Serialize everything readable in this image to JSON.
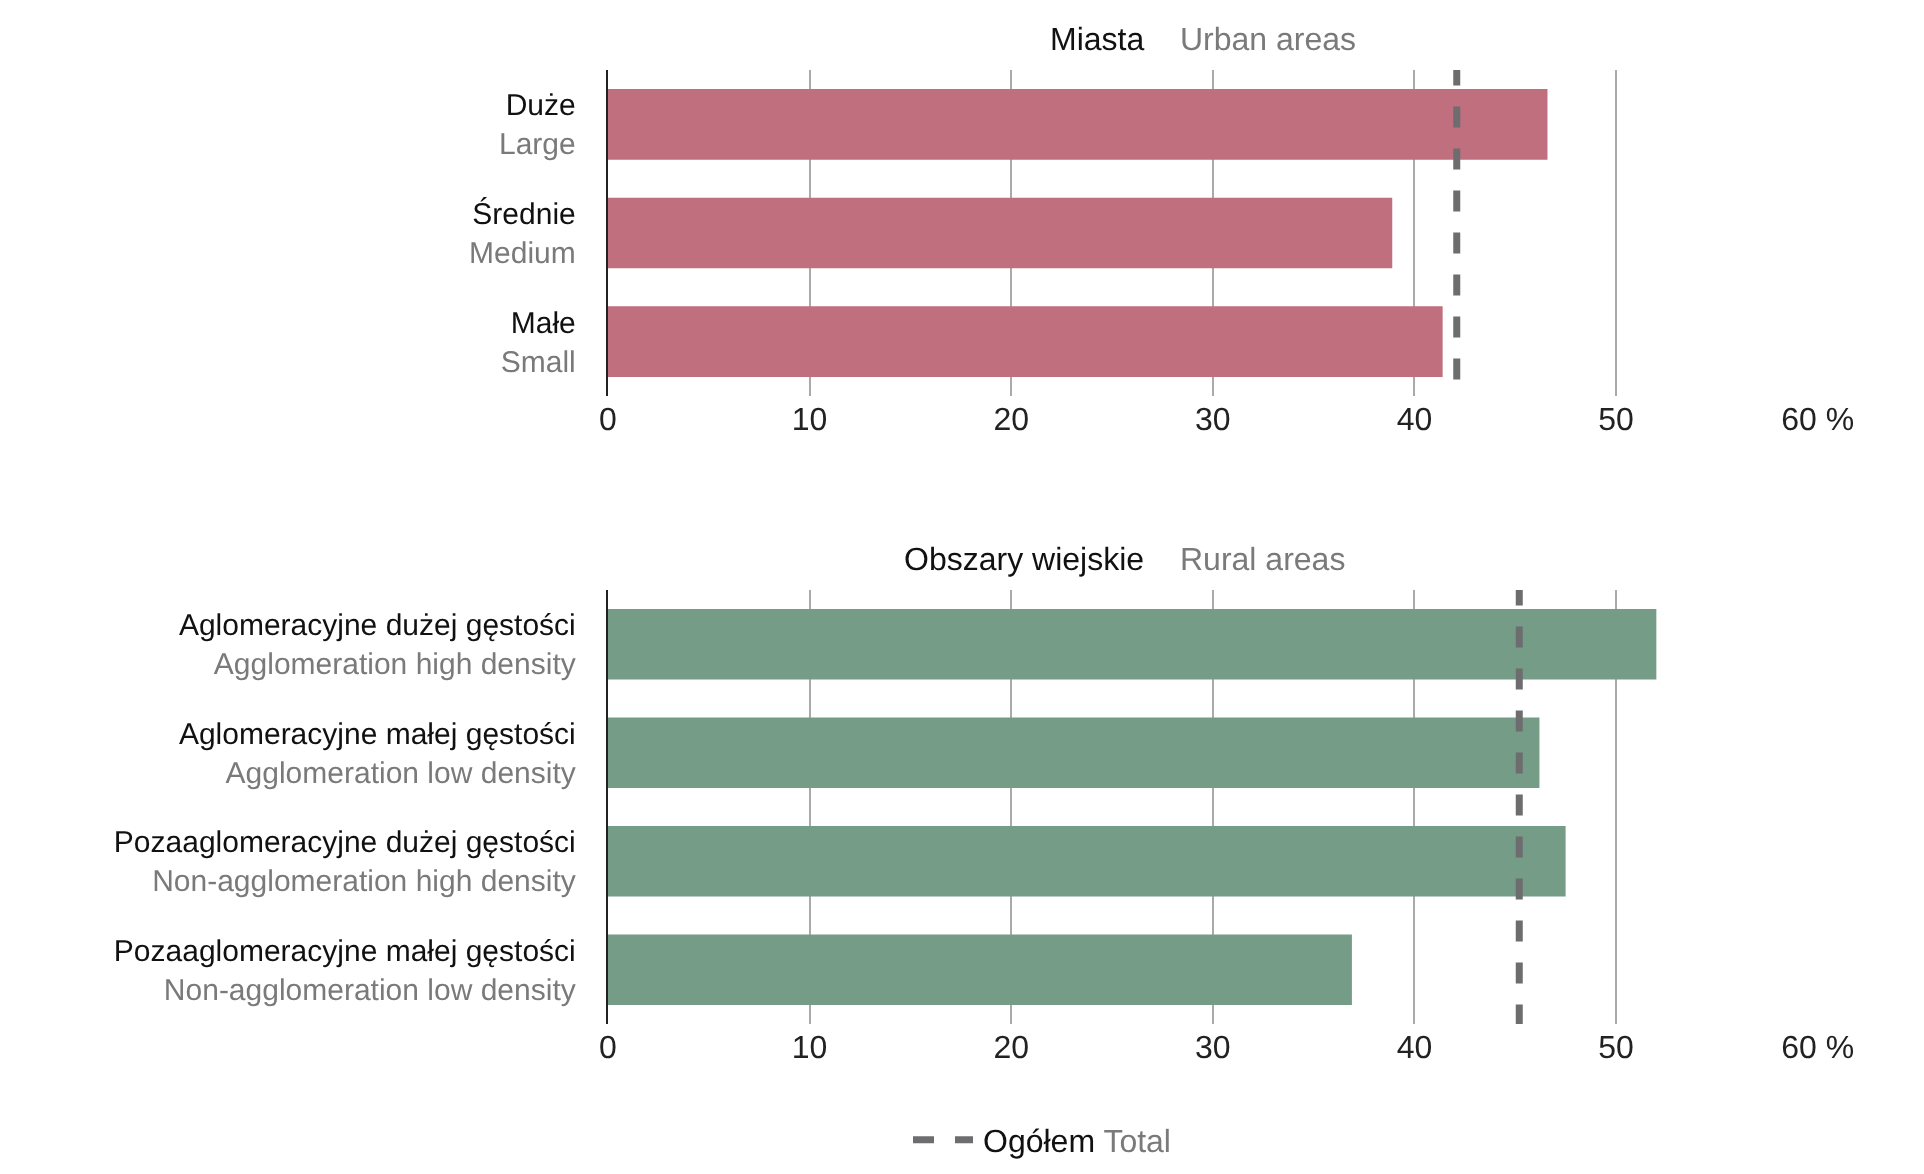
{
  "chart_data": [
    {
      "type": "bar",
      "orientation": "horizontal",
      "title": "Miasta",
      "subtitle": "Urban areas",
      "categories": [
        "Duże\nLarge",
        "Średnie\nMedium",
        "Małe\nSmall"
      ],
      "series": [
        {
          "color": "#bf6f7e",
          "values": [
            46.6,
            38.9,
            41.4
          ]
        }
      ],
      "ref_lines": [
        {
          "axis": "x",
          "value": 42.1,
          "color": "#6d6d6f",
          "line_style": "dashed"
        }
      ],
      "xlim": [
        0,
        60
      ],
      "xticks": [
        0,
        10,
        20,
        30,
        40,
        50,
        {
          "value": 60,
          "label": "60 %"
        }
      ],
      "grid": "x",
      "legend": false
    },
    {
      "type": "bar",
      "orientation": "horizontal",
      "title": "Obszary wiejskie",
      "subtitle": "Rural areas",
      "categories": [
        "Aglomeracyjne dużej gęstości\nAgglomeration high density",
        "Aglomeracyjne małej gęstości\nAgglomeration low density",
        "Pozaaglomeracyjne dużej gęstości\nNon-agglomeration high density",
        "Pozaaglomeracyjne małej gęstości\nNon-agglomeration low density"
      ],
      "series": [
        {
          "color": "#759c87",
          "values": [
            52.0,
            46.2,
            47.5,
            36.9
          ]
        }
      ],
      "ref_lines": [
        {
          "axis": "x",
          "value": 45.2,
          "label": "Ogółem\nTotal",
          "color": "#6d6d6f",
          "line_style": "dashed"
        }
      ],
      "xlim": [
        0,
        60
      ],
      "xticks": [
        0,
        10,
        20,
        30,
        40,
        50,
        {
          "value": 60,
          "label": "60 %"
        }
      ],
      "grid": "x",
      "legend": "bottom"
    }
  ]
}
